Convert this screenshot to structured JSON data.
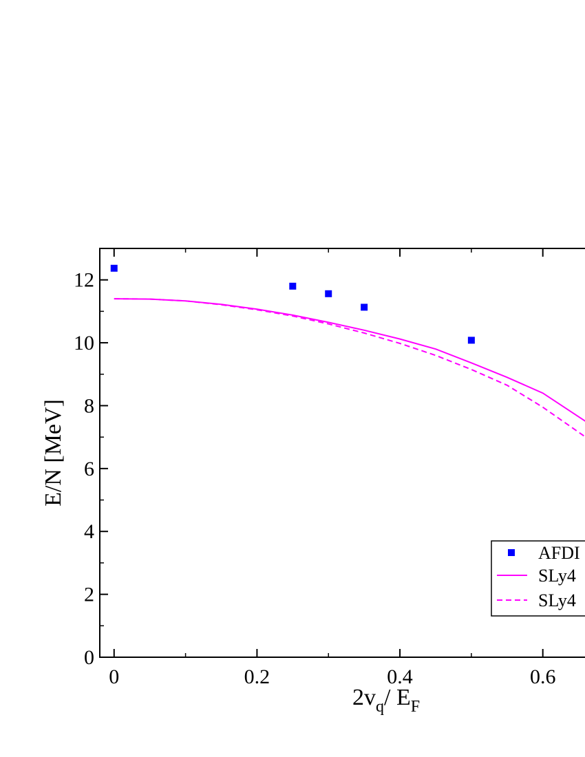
{
  "chart_data": {
    "type": "scatter",
    "xlabel_main": "2v",
    "xlabel_sub1": "q",
    "xlabel_mid": "/ E",
    "xlabel_sub2": "F",
    "ylabel": "E/N [MeV]",
    "xlim": [
      -0.02,
      0.66
    ],
    "ylim": [
      0,
      13
    ],
    "x_ticks": [
      0,
      0.2,
      0.4,
      0.6
    ],
    "x_tick_labels": [
      "0",
      "0.2",
      "0.4",
      "0.6"
    ],
    "y_ticks": [
      0,
      2,
      4,
      6,
      8,
      10,
      12
    ],
    "y_tick_labels": [
      "0",
      "2",
      "4",
      "6",
      "8",
      "10",
      "12"
    ],
    "legend_position": "bottom-right",
    "series": [
      {
        "name": "AFDI",
        "style": "square-markers",
        "color": "#0000ff",
        "points": [
          [
            0,
            12.37
          ],
          [
            0.25,
            11.8
          ],
          [
            0.3,
            11.56
          ],
          [
            0.35,
            11.13
          ],
          [
            0.5,
            10.08
          ]
        ]
      },
      {
        "name": "SLy4",
        "style": "solid",
        "color": "#ff00ff",
        "points": [
          [
            0,
            11.4
          ],
          [
            0.05,
            11.39
          ],
          [
            0.1,
            11.33
          ],
          [
            0.15,
            11.22
          ],
          [
            0.2,
            11.07
          ],
          [
            0.25,
            10.88
          ],
          [
            0.3,
            10.65
          ],
          [
            0.35,
            10.4
          ],
          [
            0.4,
            10.12
          ],
          [
            0.45,
            9.8
          ],
          [
            0.5,
            9.36
          ],
          [
            0.55,
            8.9
          ],
          [
            0.6,
            8.4
          ],
          [
            0.66,
            7.5
          ]
        ]
      },
      {
        "name": "SLy4",
        "style": "dashed",
        "color": "#ff00ff",
        "points": [
          [
            0,
            11.4
          ],
          [
            0.05,
            11.39
          ],
          [
            0.1,
            11.33
          ],
          [
            0.15,
            11.21
          ],
          [
            0.2,
            11.05
          ],
          [
            0.25,
            10.85
          ],
          [
            0.3,
            10.6
          ],
          [
            0.35,
            10.31
          ],
          [
            0.4,
            9.98
          ],
          [
            0.45,
            9.6
          ],
          [
            0.5,
            9.15
          ],
          [
            0.55,
            8.65
          ],
          [
            0.6,
            7.95
          ],
          [
            0.66,
            7.0
          ]
        ]
      }
    ]
  }
}
